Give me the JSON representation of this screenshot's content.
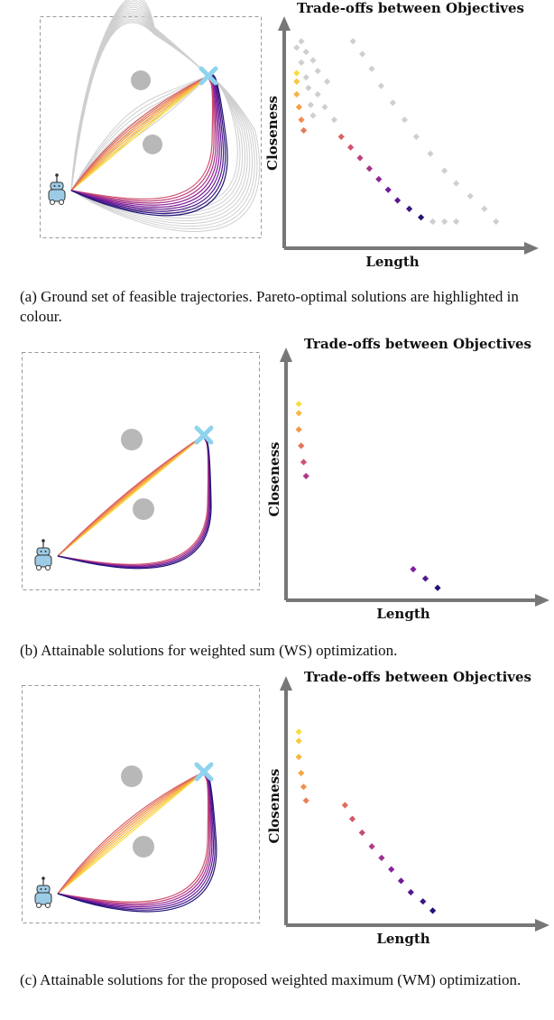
{
  "panels": [
    {
      "id": "a",
      "caption": "(a) Ground set of feasible trajectories. Pareto-optimal solutions are highlighted in colour.",
      "chart_title": "Trade-offs between Objectives",
      "x_label": "Length",
      "y_label": "Closeness",
      "show_grey_trajectories": true,
      "upper_colored_count": 7,
      "lower_colored_count": 9,
      "chart_data": {
        "type": "scatter",
        "title": "Trade-offs between Objectives",
        "xlabel": "Length",
        "ylabel": "Closeness",
        "colored_points": [
          [
            0.03,
            0.8
          ],
          [
            0.03,
            0.76
          ],
          [
            0.03,
            0.7
          ],
          [
            0.04,
            0.64
          ],
          [
            0.05,
            0.58
          ],
          [
            0.06,
            0.53
          ],
          [
            0.22,
            0.5
          ],
          [
            0.26,
            0.45
          ],
          [
            0.3,
            0.4
          ],
          [
            0.34,
            0.35
          ],
          [
            0.38,
            0.3
          ],
          [
            0.42,
            0.25
          ],
          [
            0.46,
            0.2
          ],
          [
            0.51,
            0.16
          ],
          [
            0.56,
            0.12
          ]
        ],
        "grey_points": [
          [
            0.05,
            0.95
          ],
          [
            0.07,
            0.9
          ],
          [
            0.1,
            0.86
          ],
          [
            0.12,
            0.81
          ],
          [
            0.16,
            0.76
          ],
          [
            0.12,
            0.7
          ],
          [
            0.15,
            0.64
          ],
          [
            0.19,
            0.58
          ],
          [
            0.03,
            0.92
          ],
          [
            0.05,
            0.85
          ],
          [
            0.07,
            0.78
          ],
          [
            0.08,
            0.73
          ],
          [
            0.09,
            0.65
          ],
          [
            0.1,
            0.6
          ],
          [
            0.27,
            0.95
          ],
          [
            0.31,
            0.89
          ],
          [
            0.35,
            0.82
          ],
          [
            0.39,
            0.74
          ],
          [
            0.44,
            0.66
          ],
          [
            0.49,
            0.58
          ],
          [
            0.54,
            0.5
          ],
          [
            0.6,
            0.42
          ],
          [
            0.66,
            0.34
          ],
          [
            0.71,
            0.28
          ],
          [
            0.77,
            0.22
          ],
          [
            0.83,
            0.16
          ],
          [
            0.88,
            0.1
          ],
          [
            0.61,
            0.1
          ],
          [
            0.66,
            0.1
          ],
          [
            0.71,
            0.1
          ]
        ]
      }
    },
    {
      "id": "b",
      "caption": "(b) Attainable solutions for weighted sum (WS) optimization.",
      "chart_title": "Trade-offs between Objectives",
      "x_label": "Length",
      "y_label": "Closeness",
      "show_grey_trajectories": false,
      "upper_colored_count": 6,
      "lower_colored_count": 5,
      "chart_data": {
        "type": "scatter",
        "title": "Trade-offs between Objectives",
        "xlabel": "Length",
        "ylabel": "Closeness",
        "colored_points": [
          [
            0.03,
            0.82
          ],
          [
            0.03,
            0.78
          ],
          [
            0.03,
            0.71
          ],
          [
            0.04,
            0.64
          ],
          [
            0.05,
            0.57
          ],
          [
            0.06,
            0.51
          ],
          [
            0.5,
            0.11
          ],
          [
            0.55,
            0.07
          ],
          [
            0.6,
            0.03
          ]
        ],
        "grey_points": []
      }
    },
    {
      "id": "c",
      "caption": "(c) Attainable solutions for the proposed weighted maximum (WM) optimization.",
      "chart_title": "Trade-offs between Objectives",
      "x_label": "Length",
      "y_label": "Closeness",
      "show_grey_trajectories": false,
      "upper_colored_count": 7,
      "lower_colored_count": 7,
      "chart_data": {
        "type": "scatter",
        "title": "Trade-offs between Objectives",
        "xlabel": "Length",
        "ylabel": "Closeness",
        "colored_points": [
          [
            0.03,
            0.82
          ],
          [
            0.03,
            0.78
          ],
          [
            0.03,
            0.71
          ],
          [
            0.04,
            0.64
          ],
          [
            0.05,
            0.58
          ],
          [
            0.06,
            0.52
          ],
          [
            0.22,
            0.5
          ],
          [
            0.25,
            0.44
          ],
          [
            0.29,
            0.38
          ],
          [
            0.33,
            0.32
          ],
          [
            0.37,
            0.27
          ],
          [
            0.41,
            0.22
          ],
          [
            0.45,
            0.17
          ],
          [
            0.49,
            0.12
          ],
          [
            0.54,
            0.08
          ],
          [
            0.58,
            0.04
          ]
        ],
        "grey_points": []
      }
    }
  ],
  "colors": {
    "grey": "#cfcfcf",
    "obstacle": "#b8b8b8",
    "goal": "#8fd3ee",
    "robot": "#9ccbe6",
    "axis": "#777777"
  }
}
